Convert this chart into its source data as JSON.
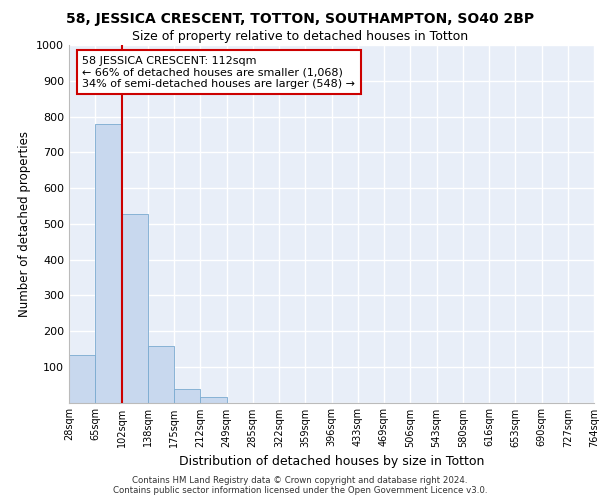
{
  "title_line1": "58, JESSICA CRESCENT, TOTTON, SOUTHAMPTON, SO40 2BP",
  "title_line2": "Size of property relative to detached houses in Totton",
  "xlabel": "Distribution of detached houses by size in Totton",
  "ylabel": "Number of detached properties",
  "bins": [
    "28sqm",
    "65sqm",
    "102sqm",
    "138sqm",
    "175sqm",
    "212sqm",
    "249sqm",
    "285sqm",
    "322sqm",
    "359sqm",
    "396sqm",
    "433sqm",
    "469sqm",
    "506sqm",
    "543sqm",
    "580sqm",
    "616sqm",
    "653sqm",
    "690sqm",
    "727sqm",
    "764sqm"
  ],
  "bar_heights": [
    133,
    778,
    526,
    158,
    37,
    14,
    0,
    0,
    0,
    0,
    0,
    0,
    0,
    0,
    0,
    0,
    0,
    0,
    0,
    0
  ],
  "bar_color": "#c8d8ee",
  "bar_edge_color": "#7aaad0",
  "vline_color": "#cc0000",
  "ylim": [
    0,
    1000
  ],
  "yticks": [
    0,
    100,
    200,
    300,
    400,
    500,
    600,
    700,
    800,
    900,
    1000
  ],
  "annotation_text": "58 JESSICA CRESCENT: 112sqm\n← 66% of detached houses are smaller (1,068)\n34% of semi-detached houses are larger (548) →",
  "annotation_box_color": "#ffffff",
  "annotation_box_edge": "#cc0000",
  "footnote_line1": "Contains HM Land Registry data © Crown copyright and database right 2024.",
  "footnote_line2": "Contains public sector information licensed under the Open Government Licence v3.0.",
  "plot_bg_color": "#e8eef8",
  "fig_bg_color": "#ffffff",
  "grid_color": "#ffffff"
}
